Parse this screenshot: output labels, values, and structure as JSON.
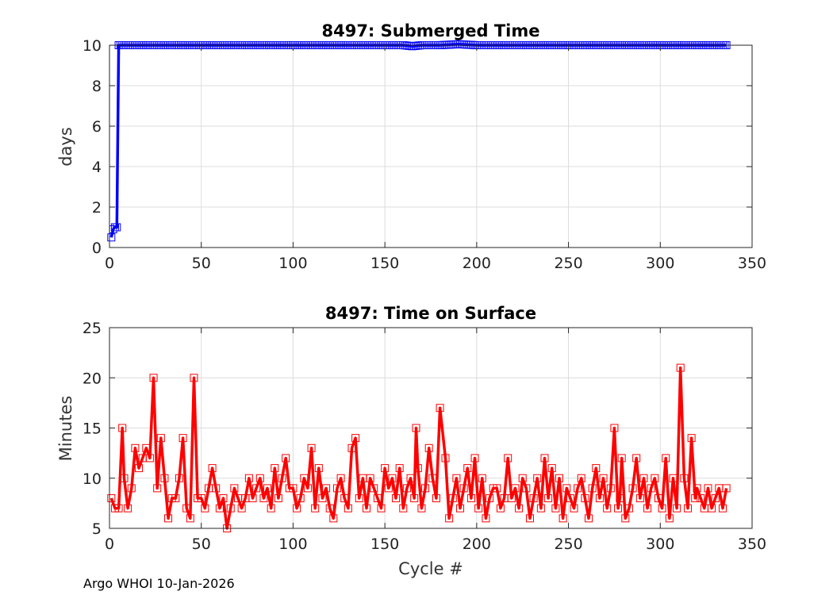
{
  "footer": "Argo WHOI 10-Jan-2026",
  "chart_data": [
    {
      "type": "line",
      "title": "8497: Submerged Time",
      "xlabel": "",
      "ylabel": "days",
      "xlim": [
        0,
        350
      ],
      "ylim": [
        0,
        10
      ],
      "xticks": [
        0,
        50,
        100,
        150,
        200,
        250,
        300,
        350
      ],
      "yticks": [
        0,
        2,
        4,
        6,
        8,
        10
      ],
      "grid": true,
      "marker": "square",
      "color": "#0000ff",
      "series": [
        {
          "values_note": "",
          "x": [
            1,
            2,
            3,
            4,
            5,
            6,
            7,
            8,
            9,
            10,
            20,
            30,
            40,
            50,
            60,
            80,
            100,
            120,
            140,
            160,
            165,
            170,
            180,
            190,
            200,
            220,
            240,
            260,
            280,
            300,
            320,
            336
          ],
          "y": [
            0.5,
            0.9,
            1.0,
            1.0,
            10.0,
            10.0,
            10.0,
            10.0,
            10.0,
            10.0,
            10.0,
            10.0,
            10.0,
            10.0,
            10.0,
            10.0,
            10.0,
            10.0,
            10.0,
            10.0,
            9.95,
            10.0,
            10.0,
            10.05,
            10.0,
            10.0,
            10.0,
            10.0,
            10.0,
            10.0,
            10.0,
            10.0
          ]
        }
      ]
    },
    {
      "type": "line",
      "title": "8497: Time on Surface",
      "xlabel": "Cycle #",
      "ylabel": "Minutes",
      "xlim": [
        0,
        350
      ],
      "ylim": [
        5,
        25
      ],
      "xticks": [
        0,
        50,
        100,
        150,
        200,
        250,
        300,
        350
      ],
      "yticks": [
        5,
        10,
        15,
        20,
        25
      ],
      "grid": true,
      "marker": "square",
      "color": "#ff0000",
      "series": [
        {
          "x": [
            1,
            3,
            5,
            7,
            8,
            10,
            12,
            14,
            16,
            18,
            20,
            22,
            24,
            26,
            28,
            30,
            32,
            34,
            36,
            38,
            40,
            42,
            44,
            46,
            48,
            50,
            52,
            54,
            56,
            58,
            60,
            62,
            64,
            66,
            68,
            70,
            72,
            74,
            76,
            78,
            80,
            82,
            84,
            86,
            88,
            90,
            92,
            94,
            96,
            98,
            100,
            102,
            104,
            106,
            108,
            110,
            112,
            114,
            116,
            118,
            120,
            122,
            124,
            126,
            128,
            130,
            132,
            134,
            136,
            138,
            140,
            142,
            144,
            146,
            148,
            150,
            152,
            154,
            156,
            158,
            160,
            162,
            164,
            166,
            167,
            168,
            170,
            172,
            174,
            176,
            178,
            180,
            183,
            185,
            187,
            189,
            191,
            193,
            195,
            197,
            199,
            201,
            203,
            205,
            207,
            209,
            211,
            213,
            215,
            217,
            219,
            221,
            223,
            225,
            227,
            229,
            231,
            233,
            235,
            237,
            239,
            241,
            243,
            245,
            247,
            249,
            251,
            253,
            255,
            257,
            259,
            261,
            263,
            265,
            267,
            269,
            271,
            273,
            275,
            277,
            278,
            279,
            281,
            283,
            285,
            287,
            289,
            291,
            293,
            295,
            297,
            299,
            301,
            303,
            305,
            307,
            309,
            311,
            313,
            315,
            317,
            319,
            320,
            322,
            324,
            326,
            328,
            330,
            332,
            334,
            336
          ],
          "y": [
            8,
            7,
            7,
            15,
            10,
            7,
            9,
            13,
            11,
            12,
            13,
            12,
            20,
            9,
            14,
            10,
            6,
            8,
            8,
            10,
            14,
            7,
            6,
            20,
            8,
            8,
            7,
            9,
            11,
            9,
            7,
            8,
            5,
            7,
            9,
            8,
            7,
            8,
            10,
            8,
            9,
            10,
            8,
            9,
            7,
            11,
            8,
            10,
            12,
            9,
            9,
            7,
            8,
            10,
            9,
            13,
            7,
            11,
            8,
            9,
            7,
            6,
            9,
            10,
            8,
            7,
            13,
            14,
            8,
            10,
            7,
            10,
            9,
            8,
            7,
            11,
            9,
            10,
            8,
            11,
            7,
            9,
            10,
            8,
            15,
            11,
            7,
            9,
            13,
            10,
            8,
            17,
            12,
            6,
            8,
            10,
            7,
            9,
            11,
            8,
            12,
            7,
            10,
            6,
            8,
            9,
            9,
            7,
            8,
            12,
            8,
            9,
            7,
            10,
            9,
            6,
            8,
            10,
            7,
            12,
            8,
            11,
            7,
            10,
            6,
            9,
            8,
            7,
            9,
            10,
            8,
            6,
            9,
            11,
            8,
            10,
            7,
            9,
            15,
            7,
            8,
            12,
            6,
            7,
            9,
            12,
            8,
            10,
            7,
            9,
            10,
            8,
            7,
            12,
            6,
            10,
            7,
            21,
            10,
            7,
            14,
            8,
            9,
            8,
            7,
            9,
            7,
            8,
            9,
            7,
            9
          ]
        }
      ]
    }
  ]
}
